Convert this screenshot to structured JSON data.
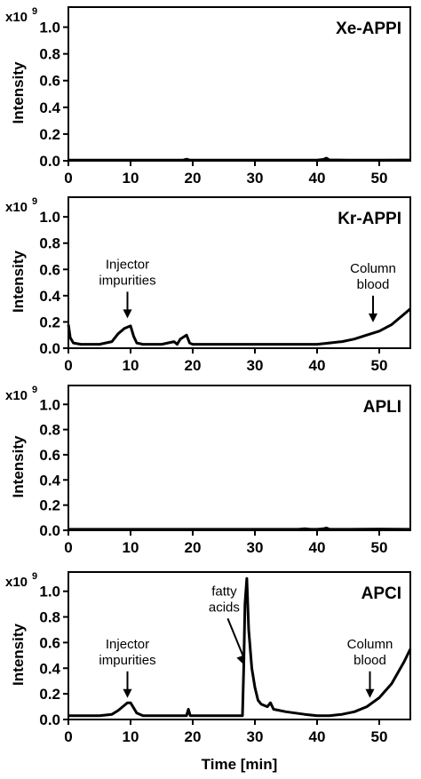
{
  "chart_data": {
    "type": "line",
    "x_axis": {
      "label": "Time [min]",
      "range": [
        0,
        55
      ],
      "ticks": [
        0,
        10,
        20,
        30,
        40,
        50
      ]
    },
    "y_axis": {
      "label": "Intensity",
      "multiplier_base": "x10",
      "multiplier_exp": "9",
      "range": [
        0,
        1.15
      ],
      "ticks": [
        "0.0",
        "0.2",
        "0.4",
        "0.6",
        "0.8",
        "1.0"
      ]
    },
    "grid": false,
    "line_color": "#000000",
    "panels": [
      {
        "label": "Xe-APPI",
        "annotations": [],
        "series": [
          {
            "x": [
              0,
              5,
              10,
              15,
              18.5,
              19,
              19.5,
              25,
              30,
              35,
              40,
              41,
              41.5,
              42,
              45,
              50,
              55
            ],
            "y": [
              0.005,
              0.005,
              0.005,
              0.005,
              0.005,
              0.012,
              0.005,
              0.005,
              0.005,
              0.005,
              0.005,
              0.01,
              0.02,
              0.006,
              0.005,
              0.005,
              0.006
            ]
          }
        ]
      },
      {
        "label": "Kr-APPI",
        "annotations": [
          {
            "text": "Injector\nimpurities",
            "x": 9.5,
            "y": 0.2
          },
          {
            "text": "Column\nblood",
            "x": 49,
            "y": 0.17
          }
        ],
        "series": [
          {
            "x": [
              0,
              0.3,
              0.8,
              2,
              5,
              7,
              8,
              9,
              10,
              10.5,
              11,
              12,
              15,
              17,
              17.5,
              18,
              19,
              19.5,
              20,
              22,
              25,
              30,
              35,
              40,
              42,
              44,
              46,
              48,
              50,
              52,
              53,
              54,
              55
            ],
            "y": [
              0.18,
              0.08,
              0.04,
              0.03,
              0.03,
              0.05,
              0.11,
              0.15,
              0.17,
              0.09,
              0.04,
              0.03,
              0.03,
              0.05,
              0.03,
              0.07,
              0.1,
              0.04,
              0.03,
              0.03,
              0.03,
              0.03,
              0.03,
              0.03,
              0.04,
              0.05,
              0.07,
              0.1,
              0.13,
              0.18,
              0.22,
              0.26,
              0.3
            ]
          }
        ]
      },
      {
        "label": "APLI",
        "annotations": [],
        "series": [
          {
            "x": [
              0,
              10,
              20,
              30,
              37,
              38,
              39,
              40,
              41,
              41.5,
              42,
              45,
              50,
              55
            ],
            "y": [
              0.008,
              0.008,
              0.008,
              0.008,
              0.008,
              0.012,
              0.008,
              0.008,
              0.012,
              0.018,
              0.008,
              0.008,
              0.01,
              0.008
            ]
          }
        ]
      },
      {
        "label": "APCI",
        "annotations": [
          {
            "text": "Injector\nimpurities",
            "x": 9.5,
            "y": 0.14
          },
          {
            "text": "fatty\nacids",
            "x": 28.2,
            "y": 0.4
          },
          {
            "text": "Column\nblood",
            "x": 48.5,
            "y": 0.14
          }
        ],
        "series": [
          {
            "x": [
              0,
              5,
              7,
              8,
              9,
              9.5,
              10,
              10.5,
              11,
              12,
              15,
              19,
              19.3,
              19.6,
              20,
              25,
              27.5,
              28,
              28.2,
              28.4,
              28.7,
              29,
              29.5,
              30,
              30.5,
              31,
              32,
              32.5,
              33,
              35,
              38,
              40,
              42,
              44,
              46,
              48,
              50,
              52,
              54,
              55
            ],
            "y": [
              0.03,
              0.03,
              0.04,
              0.07,
              0.11,
              0.13,
              0.13,
              0.09,
              0.05,
              0.03,
              0.03,
              0.03,
              0.08,
              0.03,
              0.03,
              0.03,
              0.03,
              0.03,
              0.4,
              0.9,
              1.1,
              0.7,
              0.4,
              0.25,
              0.15,
              0.12,
              0.1,
              0.13,
              0.08,
              0.06,
              0.04,
              0.03,
              0.03,
              0.04,
              0.06,
              0.1,
              0.17,
              0.28,
              0.45,
              0.55
            ]
          }
        ]
      }
    ]
  }
}
